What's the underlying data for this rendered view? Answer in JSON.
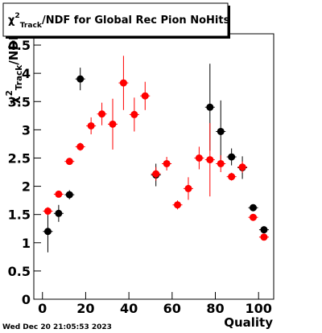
{
  "chart_data": {
    "type": "errorbar",
    "title": {
      "symbol": "χ",
      "sup": "2",
      "sub": "Track",
      "text": "/NDF for Global Rec Pion NoHits"
    },
    "ylabel": {
      "symbol": "χ",
      "sup": "2",
      "sub": "Track",
      "text": "/NDF"
    },
    "xlabel": "Quality",
    "footer": "Wed Dec 20 21:05:53 2023",
    "xlim": [
      -4,
      107
    ],
    "ylim": [
      0,
      4.7
    ],
    "xticks": [
      0,
      20,
      40,
      60,
      80,
      100
    ],
    "yticks": [
      0,
      0.5,
      1,
      1.5,
      2,
      2.5,
      3,
      3.5,
      4,
      4.5
    ],
    "series": [
      {
        "color": "#000000",
        "x": [
          2.5,
          7.5,
          12.5,
          17.5,
          52.5,
          77.5,
          82.5,
          87.5,
          92.5,
          97.5,
          102.5
        ],
        "values": [
          1.2,
          1.52,
          1.85,
          3.9,
          2.2,
          3.4,
          2.97,
          2.52,
          2.33,
          1.62,
          1.23
        ],
        "errors": [
          0.37,
          0.15,
          0.08,
          0.2,
          0.2,
          0.77,
          0.55,
          0.15,
          0.2,
          0.05,
          0.05
        ]
      },
      {
        "color": "#ff0000",
        "x": [
          2.5,
          7.5,
          12.5,
          17.5,
          22.5,
          27.5,
          32.5,
          37.5,
          42.5,
          47.5,
          52.5,
          57.5,
          62.5,
          67.5,
          72.5,
          77.5,
          82.5,
          87.5,
          92.5,
          97.5,
          102.5
        ],
        "values": [
          1.56,
          1.86,
          2.44,
          2.7,
          3.07,
          3.28,
          3.1,
          3.83,
          3.27,
          3.6,
          2.22,
          2.4,
          1.67,
          1.96,
          2.5,
          2.47,
          2.4,
          2.17,
          2.34,
          1.45,
          1.1
        ],
        "errors": [
          0.07,
          0.03,
          0.04,
          0.07,
          0.15,
          0.2,
          0.45,
          0.48,
          0.3,
          0.25,
          0.12,
          0.12,
          0.08,
          0.2,
          0.2,
          0.65,
          0.15,
          0.07,
          0.1,
          0.05,
          0.05
        ]
      }
    ]
  }
}
